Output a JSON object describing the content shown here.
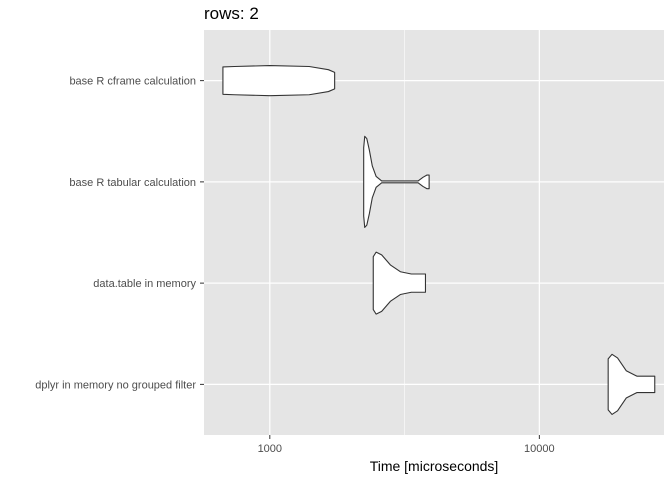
{
  "chart_data": {
    "type": "violin",
    "title": "rows: 2",
    "xlabel": "Time [microseconds]",
    "ylabel": "",
    "x_scale": "log10",
    "xlim": [
      570,
      29000
    ],
    "x_ticks": [
      1000,
      10000
    ],
    "x_tick_labels": [
      "1000",
      "10000"
    ],
    "grid": true,
    "panel_background": "#e5e5e5",
    "grid_color": "#ffffff",
    "violin_fill": "#ffffff",
    "violin_stroke": "#333333",
    "categories": [
      "base R cframe calculation",
      "base R tabular calculation",
      "data.table in memory",
      "dplyr in memory no grouped filter"
    ],
    "series": [
      {
        "category": "base R cframe calculation",
        "min": 670,
        "max": 1740,
        "profile": [
          [
            670,
            0.3
          ],
          [
            740,
            0.31
          ],
          [
            1000,
            0.33
          ],
          [
            1400,
            0.31
          ],
          [
            1650,
            0.24
          ],
          [
            1740,
            0.18
          ]
        ]
      },
      {
        "category": "base R tabular calculation",
        "min": 2230,
        "max": 3900,
        "profile": [
          [
            2230,
            0.75
          ],
          [
            2250,
            1.0
          ],
          [
            2290,
            0.95
          ],
          [
            2340,
            0.7
          ],
          [
            2400,
            0.35
          ],
          [
            2480,
            0.12
          ],
          [
            2600,
            0.02
          ],
          [
            3000,
            0.02
          ],
          [
            3550,
            0.02
          ],
          [
            3700,
            0.1
          ],
          [
            3830,
            0.15
          ],
          [
            3900,
            0.15
          ]
        ]
      },
      {
        "category": "data.table in memory",
        "min": 2420,
        "max": 3780,
        "profile": [
          [
            2420,
            0.58
          ],
          [
            2480,
            0.68
          ],
          [
            2600,
            0.62
          ],
          [
            2800,
            0.4
          ],
          [
            3050,
            0.25
          ],
          [
            3350,
            0.2
          ],
          [
            3780,
            0.2
          ]
        ]
      },
      {
        "category": "dplyr in memory no grouped filter",
        "min": 18000,
        "max": 26800,
        "profile": [
          [
            18000,
            0.56
          ],
          [
            18600,
            0.66
          ],
          [
            19500,
            0.58
          ],
          [
            21000,
            0.3
          ],
          [
            23000,
            0.18
          ],
          [
            26800,
            0.18
          ]
        ]
      }
    ]
  }
}
